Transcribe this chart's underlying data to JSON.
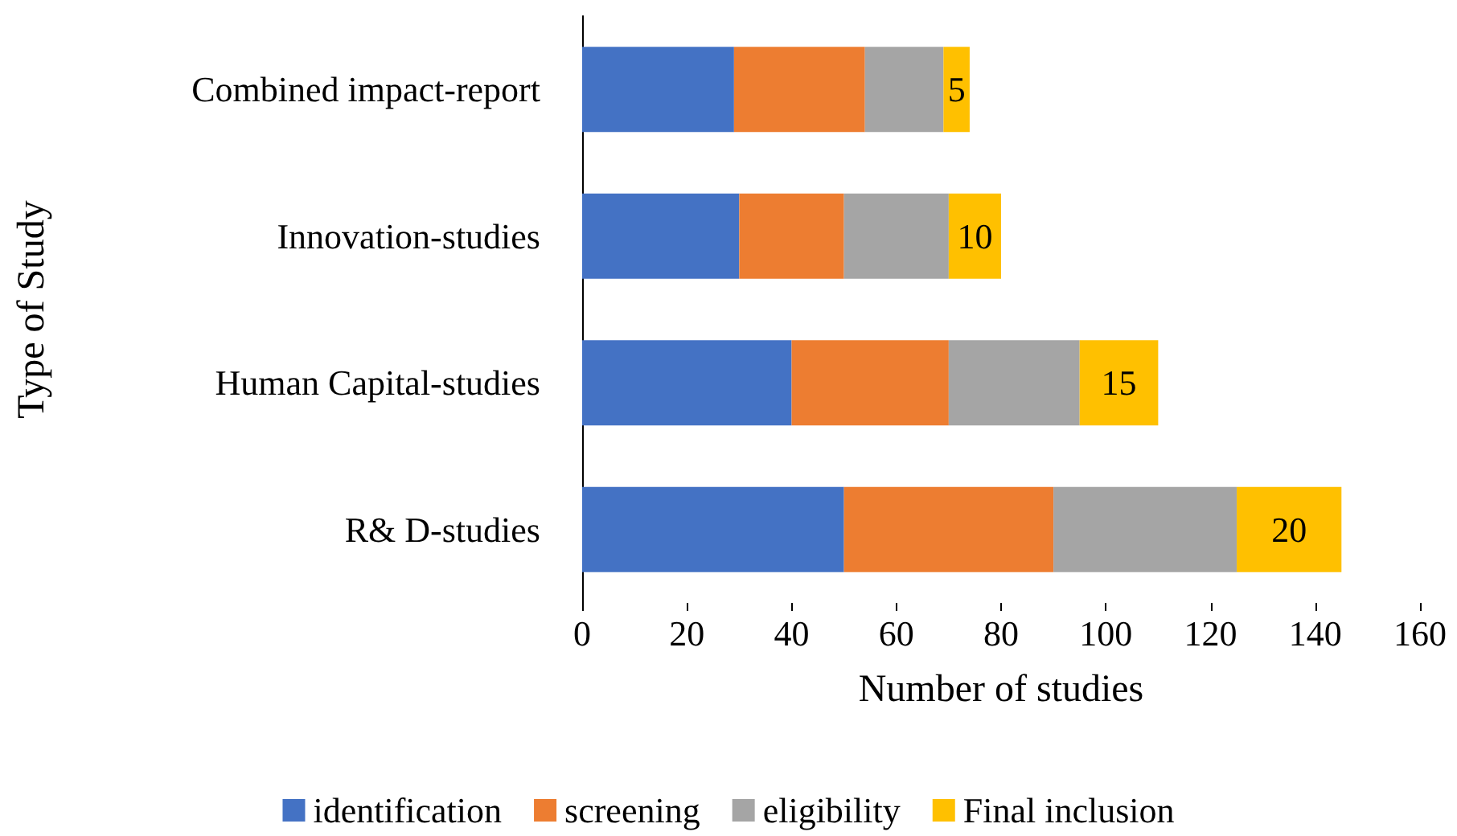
{
  "chart_data": {
    "type": "bar",
    "orientation": "horizontal",
    "stacked": true,
    "xlabel": "Number of studies",
    "ylabel": "Type of Study",
    "categories": [
      "Combined impact-report",
      "Innovation-studies",
      "Human Capital-studies",
      "R& D-studies"
    ],
    "series": [
      {
        "name": "identification",
        "color": "#4472c4",
        "values": [
          29,
          30,
          40,
          50
        ]
      },
      {
        "name": "screening",
        "color": "#ed7d31",
        "values": [
          25,
          20,
          30,
          40
        ]
      },
      {
        "name": "eligibility",
        "color": "#a5a5a5",
        "values": [
          15,
          20,
          25,
          35
        ]
      },
      {
        "name": "Final inclusion",
        "color": "#ffc000",
        "values": [
          5,
          10,
          15,
          20
        ],
        "value_labels": [
          "5",
          "10",
          "15",
          "20"
        ]
      }
    ],
    "xlim": [
      0,
      160
    ],
    "xticks": [
      0,
      20,
      40,
      60,
      80,
      100,
      120,
      140,
      160
    ],
    "grid": false,
    "legend": "bottom"
  }
}
